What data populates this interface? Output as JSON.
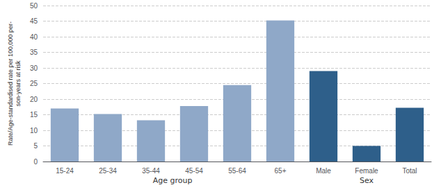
{
  "chart_data": {
    "type": "bar",
    "categories": [
      "15-24",
      "25-34",
      "35-44",
      "45-54",
      "55-64",
      "65+",
      "Male",
      "Female",
      "Total"
    ],
    "values": [
      17.0,
      15.2,
      13.2,
      17.8,
      24.5,
      45.2,
      29.0,
      5.0,
      17.2
    ],
    "colors": [
      "#8fa8c8",
      "#8fa8c8",
      "#8fa8c8",
      "#8fa8c8",
      "#8fa8c8",
      "#8fa8c8",
      "#2e5f8a",
      "#2e5f8a",
      "#2e5f8a"
    ],
    "ylabel": "Rate/Age-standardised rate per 100,000 per-\nson-years at risk",
    "annotations": [
      "Age group",
      "Sex"
    ],
    "ylim": [
      0,
      50
    ],
    "yticks": [
      0,
      5,
      10,
      15,
      20,
      25,
      30,
      35,
      40,
      45,
      50
    ],
    "grid": true
  }
}
